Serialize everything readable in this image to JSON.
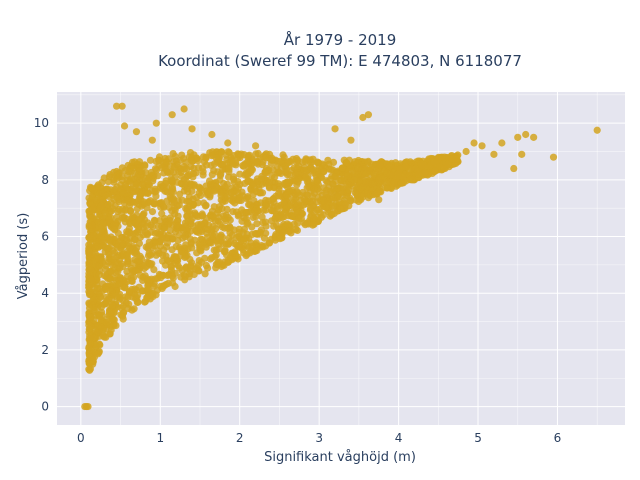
{
  "chart_data": {
    "type": "scatter",
    "title_line1": "År 1979 - 2019",
    "title_line2": "Koordinat (Sweref 99 TM): E 474803, N 6118077",
    "xlabel": "Signifikant våghöjd (m)",
    "ylabel": "Vågperiod (s)",
    "xlim": [
      -0.3,
      6.85
    ],
    "ylim": [
      -0.65,
      11.1
    ],
    "xticks": [
      0,
      1,
      2,
      3,
      4,
      5,
      6
    ],
    "yticks": [
      0,
      2,
      4,
      6,
      8,
      10
    ],
    "grid": true,
    "marker_color": "#d4a520",
    "plot_bg": "#e5e5ef",
    "cluster": {
      "lower_envelope": [
        [
          0.1,
          1.2
        ],
        [
          0.3,
          2.3
        ],
        [
          0.6,
          3.3
        ],
        [
          1.0,
          4.0
        ],
        [
          1.5,
          4.6
        ],
        [
          2.0,
          5.2
        ],
        [
          2.5,
          5.9
        ],
        [
          3.0,
          6.5
        ],
        [
          3.5,
          7.2
        ],
        [
          4.0,
          7.8
        ],
        [
          4.5,
          8.3
        ],
        [
          4.75,
          8.6
        ]
      ],
      "upper_envelope": [
        [
          0.1,
          7.7
        ],
        [
          0.3,
          8.1
        ],
        [
          0.6,
          8.6
        ],
        [
          1.0,
          8.9
        ],
        [
          1.5,
          9.0
        ],
        [
          2.0,
          9.0
        ],
        [
          2.5,
          8.9
        ],
        [
          3.0,
          8.7
        ],
        [
          3.5,
          8.7
        ],
        [
          4.0,
          8.6
        ],
        [
          4.5,
          8.8
        ],
        [
          4.75,
          8.9
        ]
      ]
    },
    "outliers": [
      {
        "x": 0.05,
        "y": 0.0
      },
      {
        "x": 0.07,
        "y": 0.0
      },
      {
        "x": 0.09,
        "y": 0.0
      },
      {
        "x": 0.45,
        "y": 10.6
      },
      {
        "x": 0.52,
        "y": 10.6
      },
      {
        "x": 0.55,
        "y": 9.9
      },
      {
        "x": 0.7,
        "y": 9.7
      },
      {
        "x": 0.9,
        "y": 9.4
      },
      {
        "x": 1.15,
        "y": 10.3
      },
      {
        "x": 1.3,
        "y": 10.5
      },
      {
        "x": 1.4,
        "y": 9.8
      },
      {
        "x": 0.95,
        "y": 10.0
      },
      {
        "x": 1.65,
        "y": 9.6
      },
      {
        "x": 1.85,
        "y": 9.3
      },
      {
        "x": 2.2,
        "y": 9.2
      },
      {
        "x": 3.2,
        "y": 9.8
      },
      {
        "x": 3.55,
        "y": 10.2
      },
      {
        "x": 3.62,
        "y": 10.3
      },
      {
        "x": 3.4,
        "y": 9.4
      },
      {
        "x": 4.95,
        "y": 9.3
      },
      {
        "x": 5.05,
        "y": 9.2
      },
      {
        "x": 5.2,
        "y": 8.9
      },
      {
        "x": 5.3,
        "y": 9.3
      },
      {
        "x": 5.5,
        "y": 9.5
      },
      {
        "x": 5.6,
        "y": 9.6
      },
      {
        "x": 5.7,
        "y": 9.5
      },
      {
        "x": 5.55,
        "y": 8.9
      },
      {
        "x": 5.45,
        "y": 8.4
      },
      {
        "x": 5.95,
        "y": 8.8
      },
      {
        "x": 6.5,
        "y": 9.75
      },
      {
        "x": 4.85,
        "y": 9.0
      },
      {
        "x": 4.25,
        "y": 8.2
      },
      {
        "x": 3.75,
        "y": 7.3
      }
    ]
  }
}
